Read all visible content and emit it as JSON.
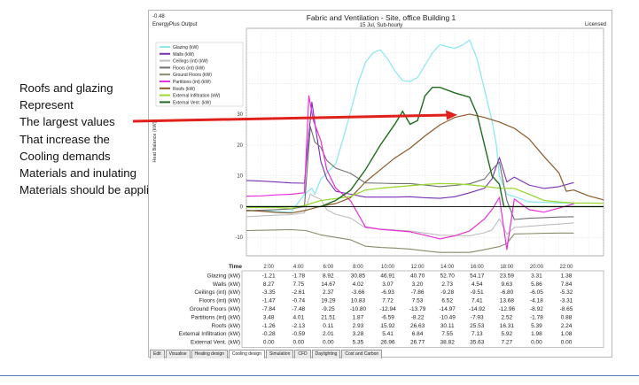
{
  "notes": [
    "Roofs and glazing",
    "Represent",
    "The largest values",
    "That increase the",
    "Cooling demands",
    "Materials and inulating",
    "Materials should be applid"
  ],
  "window": {
    "corner_value": "-0.48",
    "app_name": "EnergyPlus Output",
    "title": "Fabric and Ventilation - Site, office Building 1",
    "subtitle": "15 Jul, Sub-hourly",
    "license": "Licensed"
  },
  "tabs": [
    "Edit",
    "Visualise",
    "Heating design",
    "Cooling design",
    "Simulation",
    "CFD",
    "Daylighting",
    "Cost and Carbon"
  ],
  "active_tab": 3,
  "chart_data": {
    "type": "line",
    "ylabel": "Heat Balance (kW)",
    "xlabel": "Time",
    "x": [
      "2:00",
      "4:00",
      "6:00",
      "8:00",
      "10:00",
      "12:00",
      "14:00",
      "16:00",
      "18:00",
      "20:00",
      "22:00"
    ],
    "ylim": [
      -16,
      58
    ],
    "yticks": [
      -10,
      0,
      10,
      20,
      30,
      40,
      50
    ],
    "grid": true,
    "legend_position": "top-left",
    "series": [
      {
        "name": "Glazing (kW)",
        "color": "#8fe8f0",
        "width": 1.3,
        "values": [
          -1.21,
          -1.78,
          8.92,
          30.85,
          46.91,
          40.7,
          52.7,
          54.17,
          23.59,
          3.31,
          1.38
        ],
        "points": [
          [
            0,
            -1.2
          ],
          [
            1,
            -1.2
          ],
          [
            2,
            -1.6
          ],
          [
            3,
            -1.8
          ],
          [
            3.6,
            2
          ],
          [
            3.9,
            4
          ],
          [
            4.4,
            6
          ],
          [
            4.6,
            4
          ],
          [
            5,
            8.9
          ],
          [
            6,
            14
          ],
          [
            6.5,
            22
          ],
          [
            7,
            30.8
          ],
          [
            7.5,
            40
          ],
          [
            8,
            46.9
          ],
          [
            8.5,
            50
          ],
          [
            9,
            51
          ],
          [
            9.5,
            48
          ],
          [
            10,
            44
          ],
          [
            10.5,
            41
          ],
          [
            11,
            40.7
          ],
          [
            11.5,
            42
          ],
          [
            12,
            46
          ],
          [
            12.5,
            50
          ],
          [
            13,
            52.7
          ],
          [
            13.5,
            52
          ],
          [
            14,
            51.5
          ],
          [
            14.5,
            52.5
          ],
          [
            15,
            54.2
          ],
          [
            15.5,
            48
          ],
          [
            16,
            38
          ],
          [
            16.5,
            28
          ],
          [
            16.8,
            20
          ],
          [
            17,
            10
          ],
          [
            17.5,
            4
          ],
          [
            18,
            3.3
          ],
          [
            19,
            1.5
          ],
          [
            20,
            1.38
          ],
          [
            21,
            1.2
          ],
          [
            22,
            1
          ]
        ]
      },
      {
        "name": "Walls (kW)",
        "color": "#7b2fb5",
        "width": 1.1,
        "values": [
          8.27,
          7.75,
          14.67,
          4.02,
          3.07,
          3.2,
          2.73,
          4.54,
          9.63,
          5.86,
          7.84
        ],
        "points": [
          [
            0,
            8.5
          ],
          [
            1,
            8.3
          ],
          [
            2,
            8
          ],
          [
            3,
            7.7
          ],
          [
            3.9,
            7.6
          ],
          [
            4.4,
            34
          ],
          [
            4.7,
            24
          ],
          [
            5,
            14.7
          ],
          [
            5.4,
            9
          ],
          [
            6,
            5
          ],
          [
            7,
            4
          ],
          [
            8,
            3.1
          ],
          [
            9,
            3.1
          ],
          [
            10,
            3.1
          ],
          [
            11,
            3.2
          ],
          [
            12,
            2.9
          ],
          [
            13,
            2.7
          ],
          [
            14,
            3.2
          ],
          [
            15,
            4.5
          ],
          [
            16,
            6
          ],
          [
            16.5,
            9
          ],
          [
            17,
            16
          ],
          [
            17.5,
            8
          ],
          [
            18,
            9.6
          ],
          [
            19,
            7
          ],
          [
            20,
            5.9
          ],
          [
            21,
            6.5
          ],
          [
            22,
            7.8
          ]
        ]
      },
      {
        "name": "Ceilings (int) (kW)",
        "color": "#bebebe",
        "width": 1.1,
        "values": [
          -3.35,
          -2.61,
          2.37,
          -3.66,
          -6.93,
          -7.86,
          -9.28,
          -9.51,
          -6.8,
          -6.05,
          -5.32
        ],
        "points": [
          [
            0,
            -3.3
          ],
          [
            1,
            -3
          ],
          [
            2,
            -2.8
          ],
          [
            3,
            -2.6
          ],
          [
            3.9,
            -2
          ],
          [
            4.3,
            4
          ],
          [
            4.7,
            3
          ],
          [
            5,
            2.4
          ],
          [
            5.4,
            -1
          ],
          [
            6,
            -2.5
          ],
          [
            7,
            -3.7
          ],
          [
            8,
            -6.9
          ],
          [
            9,
            -7.3
          ],
          [
            10,
            -7.6
          ],
          [
            11,
            -7.9
          ],
          [
            12,
            -8.6
          ],
          [
            13,
            -9.3
          ],
          [
            14,
            -9.4
          ],
          [
            15,
            -9.5
          ],
          [
            16,
            -8.5
          ],
          [
            16.5,
            -7.6
          ],
          [
            17,
            -4
          ],
          [
            17.5,
            -9
          ],
          [
            18,
            -6.8
          ],
          [
            19,
            -6.4
          ],
          [
            20,
            -6
          ],
          [
            21,
            -5.7
          ],
          [
            22,
            -5.3
          ]
        ]
      },
      {
        "name": "Floors (int) (kW)",
        "color": "#707070",
        "width": 1.1,
        "values": [
          -1.47,
          -0.74,
          19.29,
          10.83,
          7.72,
          7.53,
          6.52,
          7.41,
          13.68,
          -4.18,
          -3.31
        ],
        "points": [
          [
            0,
            -1.4
          ],
          [
            1,
            -1.2
          ],
          [
            2,
            -1
          ],
          [
            3,
            -0.7
          ],
          [
            3.9,
            0
          ],
          [
            4.3,
            26
          ],
          [
            4.6,
            21
          ],
          [
            5,
            19.3
          ],
          [
            5.4,
            15
          ],
          [
            6,
            12.5
          ],
          [
            7,
            10.8
          ],
          [
            8,
            7.7
          ],
          [
            9,
            7.6
          ],
          [
            10,
            7.5
          ],
          [
            11,
            7.5
          ],
          [
            12,
            7
          ],
          [
            13,
            6.5
          ],
          [
            14,
            6.9
          ],
          [
            15,
            7.4
          ],
          [
            16,
            9
          ],
          [
            16.5,
            12
          ],
          [
            17,
            14.5
          ],
          [
            17.5,
            2
          ],
          [
            18,
            -4.2
          ],
          [
            19,
            -3.8
          ],
          [
            20,
            -3.6
          ],
          [
            21,
            -3.4
          ],
          [
            22,
            -3.3
          ]
        ]
      },
      {
        "name": "Ground Floors (kW)",
        "color": "#8a8a6a",
        "width": 1.1,
        "values": [
          -7.84,
          -7.48,
          -9.25,
          -10.8,
          -12.94,
          -13.79,
          -14.97,
          -14.92,
          -12.96,
          -8.92,
          -8.65
        ],
        "points": [
          [
            0,
            -7.8
          ],
          [
            1,
            -7.7
          ],
          [
            2,
            -7.6
          ],
          [
            3,
            -7.5
          ],
          [
            4,
            -7.8
          ],
          [
            5,
            -9.2
          ],
          [
            6,
            -10
          ],
          [
            7,
            -10.8
          ],
          [
            8,
            -12.9
          ],
          [
            9,
            -13.3
          ],
          [
            10,
            -13.5
          ],
          [
            11,
            -13.8
          ],
          [
            12,
            -14.4
          ],
          [
            13,
            -14.9
          ],
          [
            14,
            -14.9
          ],
          [
            15,
            -14.9
          ],
          [
            16,
            -14
          ],
          [
            17,
            -13
          ],
          [
            17.5,
            -12
          ],
          [
            18,
            -8.9
          ],
          [
            19,
            -8.8
          ],
          [
            20,
            -8.7
          ],
          [
            21,
            -8.6
          ],
          [
            22,
            -8.6
          ]
        ]
      },
      {
        "name": "Partitions (int) (kW)",
        "color": "#e830d8",
        "width": 1.2,
        "values": [
          3.48,
          4.01,
          21.51,
          1.87,
          -6.59,
          -8.22,
          -10.49,
          -7.93,
          2.52,
          -1.78,
          0.88
        ],
        "points": [
          [
            0,
            3.4
          ],
          [
            1,
            3.5
          ],
          [
            2,
            3.8
          ],
          [
            3,
            4
          ],
          [
            3.9,
            4.5
          ],
          [
            4.2,
            36
          ],
          [
            4.5,
            28
          ],
          [
            5,
            21.5
          ],
          [
            5.4,
            12
          ],
          [
            6,
            6
          ],
          [
            7,
            1.9
          ],
          [
            8,
            -6.6
          ],
          [
            9,
            -7.4
          ],
          [
            10,
            -7.8
          ],
          [
            11,
            -8.2
          ],
          [
            12,
            -9.3
          ],
          [
            13,
            -10.5
          ],
          [
            14,
            -9.5
          ],
          [
            15,
            -7.9
          ],
          [
            16,
            -4
          ],
          [
            16.5,
            -1
          ],
          [
            17,
            3
          ],
          [
            17.5,
            -14
          ],
          [
            18,
            2.5
          ],
          [
            19,
            -1
          ],
          [
            20,
            -1.8
          ],
          [
            21,
            -0.5
          ],
          [
            22,
            0.9
          ]
        ]
      },
      {
        "name": "Roofs (kW)",
        "color": "#8b5a2b",
        "width": 1.2,
        "values": [
          -1.26,
          -2.13,
          0.11,
          2.93,
          15.92,
          26.63,
          30.11,
          25.53,
          16.31,
          5.39,
          2.24
        ],
        "points": [
          [
            0,
            -1.2
          ],
          [
            1,
            -1.5
          ],
          [
            2,
            -1.9
          ],
          [
            3,
            -2.1
          ],
          [
            4,
            -1.2
          ],
          [
            5,
            0.1
          ],
          [
            6,
            1
          ],
          [
            7,
            2.9
          ],
          [
            8,
            8
          ],
          [
            9,
            12
          ],
          [
            10,
            15.9
          ],
          [
            11,
            19
          ],
          [
            12,
            23
          ],
          [
            13,
            26.6
          ],
          [
            14,
            29
          ],
          [
            15,
            30.1
          ],
          [
            16,
            29
          ],
          [
            17,
            27.5
          ],
          [
            18,
            25.5
          ],
          [
            19,
            22
          ],
          [
            20,
            16.3
          ],
          [
            21,
            11
          ],
          [
            21.5,
            5
          ],
          [
            22,
            5.4
          ],
          [
            23,
            3.5
          ],
          [
            24,
            2.2
          ]
        ]
      }
    ],
    "extra_series": [
      {
        "name": "External Infiltration (kW)",
        "color": "#9ad832",
        "width": 1.3,
        "values": [
          -0.28,
          -0.59,
          2.01,
          3.28,
          5.41,
          6.84,
          7.55,
          7.13,
          5.92,
          1.98,
          1.08
        ]
      },
      {
        "name": "External Vent. (kW)",
        "color": "#1e6b1e",
        "width": 1.4,
        "values": [
          0.0,
          0.0,
          0.0,
          5.35,
          26.96,
          26.77,
          38.82,
          35.63,
          7.27,
          0.0,
          0.0
        ]
      }
    ],
    "table_rows": [
      {
        "label": "Glazing (kW)",
        "values": [
          "-1.21",
          "-1.78",
          "8.92",
          "30.85",
          "46.91",
          "40.70",
          "52.70",
          "54.17",
          "23.59",
          "3.31",
          "1.38"
        ]
      },
      {
        "label": "Walls (kW)",
        "values": [
          "8.27",
          "7.75",
          "14.67",
          "4.02",
          "3.07",
          "3.20",
          "2.73",
          "4.54",
          "9.63",
          "5.86",
          "7.84"
        ]
      },
      {
        "label": "Ceilings (int) (kW)",
        "values": [
          "-3.35",
          "-2.61",
          "2.37",
          "-3.66",
          "-6.93",
          "-7.86",
          "-9.28",
          "-9.51",
          "-6.80",
          "-6.05",
          "-5.32"
        ]
      },
      {
        "label": "Floors (int) (kW)",
        "values": [
          "-1.47",
          "-0.74",
          "19.29",
          "10.83",
          "7.72",
          "7.53",
          "6.52",
          "7.41",
          "13.68",
          "-4.18",
          "-3.31"
        ]
      },
      {
        "label": "Ground Floors (kW)",
        "values": [
          "-7.84",
          "-7.48",
          "-9.25",
          "-10.80",
          "-12.94",
          "-13.79",
          "-14.97",
          "-14.92",
          "-12.96",
          "-8.92",
          "-8.65"
        ]
      },
      {
        "label": "Partitions (int) (kW)",
        "values": [
          "3.48",
          "4.01",
          "21.51",
          "1.87",
          "-6.59",
          "-8.22",
          "-10.49",
          "-7.93",
          "2.52",
          "-1.78",
          "0.88"
        ]
      },
      {
        "label": "Roofs (kW)",
        "values": [
          "-1.26",
          "-2.13",
          "0.11",
          "2.93",
          "15.92",
          "26.63",
          "30.11",
          "25.53",
          "16.31",
          "5.39",
          "2.24"
        ]
      },
      {
        "label": "External Infiltration (kW)",
        "values": [
          "-0.28",
          "-0.59",
          "2.01",
          "3.28",
          "5.41",
          "6.84",
          "7.55",
          "7.13",
          "5.92",
          "1.98",
          "1.08"
        ]
      },
      {
        "label": "External Vent. (kW)",
        "values": [
          "0.00",
          "0.00",
          "0.00",
          "5.35",
          "26.96",
          "26.77",
          "38.82",
          "35.63",
          "7.27",
          "0.00",
          "0.00"
        ]
      }
    ]
  }
}
